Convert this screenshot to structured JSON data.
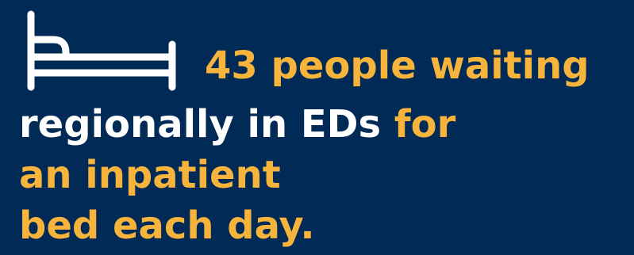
{
  "colors": {
    "background": "#022a56",
    "highlight": "#f7b43c",
    "text": "#ffffff"
  },
  "icon": "bed-icon",
  "statement": {
    "line1_highlight": "43 people waiting",
    "line2_plain": "regionally in EDs",
    "line2_highlight": " for",
    "line3_highlight": "an inpatient",
    "line4_highlight": "bed each day."
  }
}
